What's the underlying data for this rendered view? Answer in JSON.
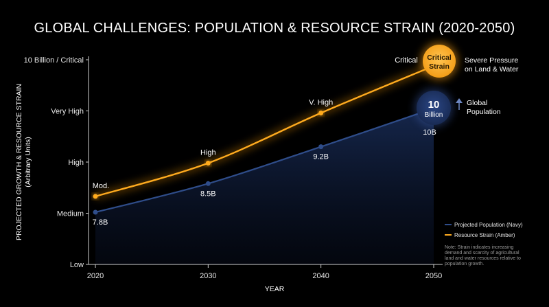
{
  "chart_data": {
    "type": "line",
    "title": "GLOBAL CHALLENGES: POPULATION & RESOURCE STRAIN (2020-2050)",
    "xlabel": "YEAR",
    "ylabel": "PROJECTED GROWTH & RESOURCE STRAIN",
    "ylabel_sub": "(Arbitrary Units)",
    "x": [
      2020,
      2030,
      2040,
      2050
    ],
    "x_ticks": [
      "2020",
      "2030",
      "2040",
      "2050"
    ],
    "ylim": [
      0,
      4
    ],
    "y_ticks": [
      {
        "value": 0,
        "label": "Low"
      },
      {
        "value": 1,
        "label": "Medium"
      },
      {
        "value": 2,
        "label": "High"
      },
      {
        "value": 3,
        "label": "Very High"
      },
      {
        "value": 4,
        "label": "10 Billion / Critical"
      }
    ],
    "series": [
      {
        "name": "Projected Population (Navy)",
        "color": "#2f4d8a",
        "values": [
          1.02,
          1.58,
          2.3,
          3.05
        ],
        "point_labels": [
          "7.8B",
          "8.5B",
          "9.2B",
          "10B"
        ]
      },
      {
        "name": "Resource Strain (Amber)",
        "color": "#ffab1f",
        "values": [
          1.33,
          1.98,
          2.96,
          3.88
        ],
        "point_labels": [
          "Mod.",
          "High",
          "V. High",
          "Critical"
        ]
      }
    ],
    "grid": false,
    "legend_position": "bottom-right",
    "callouts": {
      "strain_badge": [
        "Critical",
        "Strain"
      ],
      "strain_note": [
        "Severe Pressure",
        "on Land & Water"
      ],
      "population_badge": [
        "10",
        "Billion"
      ],
      "population_note": [
        "Global",
        "Population"
      ]
    },
    "note": [
      "Note: Strain indicates increasing",
      "demand and scarcity of agricultural",
      "land and water resources relative to",
      "population growth."
    ]
  }
}
